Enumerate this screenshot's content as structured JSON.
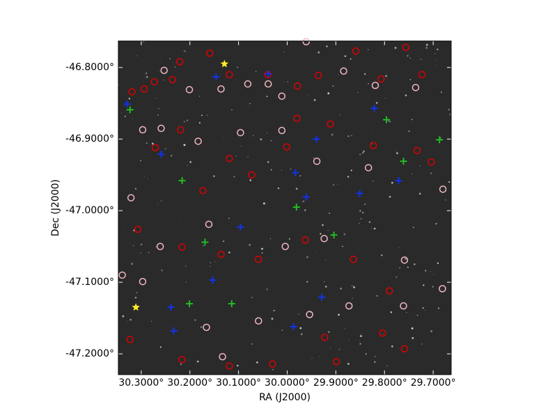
{
  "chart_data": {
    "type": "scatter",
    "xlabel": "RA (J2000)",
    "ylabel": "Dec (J2000)",
    "xlim": [
      30.347,
      29.663
    ],
    "ylim": [
      -47.229,
      -46.763
    ],
    "xticks": [
      {
        "value": 30.3,
        "label": "30.3000°"
      },
      {
        "value": 30.2,
        "label": "30.2000°"
      },
      {
        "value": 30.1,
        "label": "30.1000°"
      },
      {
        "value": 30.0,
        "label": "30.0000°"
      },
      {
        "value": 29.9,
        "label": "29.9000°"
      },
      {
        "value": 29.8,
        "label": "29.8000°"
      },
      {
        "value": 29.7,
        "label": "29.7000°"
      }
    ],
    "yticks": [
      {
        "value": -46.8,
        "label": "-46.8000°"
      },
      {
        "value": -46.9,
        "label": "-46.9000°"
      },
      {
        "value": -47.0,
        "label": "-47.0000°"
      },
      {
        "value": -47.1,
        "label": "-47.1000°"
      },
      {
        "value": -47.2,
        "label": "-47.2000°"
      }
    ],
    "background": "#2a2a2a",
    "series": [
      {
        "color": "#dd0000",
        "marker": "circle",
        "x": [
          30.319,
          30.294,
          30.273,
          30.236,
          30.221,
          30.159,
          30.119,
          30.04,
          29.979,
          29.936,
          29.859,
          29.807,
          29.756,
          29.723,
          30.219,
          30.271,
          30.173,
          30.119,
          30.073,
          30.001,
          29.98,
          29.911,
          29.823,
          29.733,
          29.704,
          30.307,
          30.216,
          30.136,
          30.059,
          29.963,
          29.864,
          29.804,
          29.759,
          30.323,
          30.216,
          30.119,
          30.03,
          29.899,
          29.79,
          29.923
        ],
        "y": [
          -46.834,
          -46.83,
          -46.82,
          -46.817,
          -46.792,
          -46.78,
          -46.81,
          -46.81,
          -46.826,
          -46.811,
          -46.777,
          -46.816,
          -46.772,
          -46.81,
          -46.887,
          -46.912,
          -46.972,
          -46.927,
          -46.95,
          -46.911,
          -46.871,
          -46.879,
          -46.909,
          -46.916,
          -46.932,
          -47.026,
          -47.051,
          -47.061,
          -47.068,
          -47.041,
          -47.068,
          -47.171,
          -47.193,
          -47.18,
          -47.208,
          -47.217,
          -47.214,
          -47.211,
          -47.112,
          -47.177
        ]
      },
      {
        "color": "#f4b8c4",
        "marker": "circle",
        "x": [
          30.253,
          30.201,
          30.136,
          30.081,
          30.039,
          30.011,
          29.961,
          29.884,
          29.819,
          29.736,
          30.297,
          30.259,
          30.183,
          30.096,
          30.011,
          29.939,
          29.833,
          29.68,
          30.321,
          30.261,
          30.161,
          30.004,
          29.924,
          29.759,
          30.339,
          30.297,
          30.166,
          30.059,
          29.954,
          29.873,
          29.761,
          29.681,
          30.133
        ],
        "y": [
          -46.804,
          -46.831,
          -46.83,
          -46.823,
          -46.823,
          -46.84,
          -46.764,
          -46.805,
          -46.825,
          -46.828,
          -46.887,
          -46.885,
          -46.903,
          -46.891,
          -46.888,
          -46.931,
          -46.94,
          -46.97,
          -46.982,
          -47.05,
          -47.019,
          -47.05,
          -47.039,
          -47.069,
          -47.09,
          -47.099,
          -47.163,
          -47.154,
          -47.145,
          -47.133,
          -47.133,
          -47.109,
          -47.204
        ]
      },
      {
        "color": "#22bb22",
        "marker": "plus",
        "x": [
          30.323,
          30.216,
          30.169,
          30.114,
          29.981,
          29.904,
          29.796,
          29.761,
          29.687,
          30.201
        ],
        "y": [
          -46.859,
          -46.958,
          -47.044,
          -47.13,
          -46.995,
          -47.034,
          -46.873,
          -46.931,
          -46.901,
          -47.13
        ]
      },
      {
        "color": "#1133ee",
        "marker": "plus",
        "x": [
          30.329,
          30.259,
          30.146,
          30.096,
          30.039,
          29.983,
          29.94,
          29.961,
          29.851,
          29.821,
          29.771,
          30.153,
          30.239,
          30.233,
          29.987,
          29.929
        ],
        "y": [
          -46.851,
          -46.921,
          -46.813,
          -47.023,
          -46.809,
          -46.947,
          -46.9,
          -46.981,
          -46.976,
          -46.857,
          -46.958,
          -47.097,
          -47.135,
          -47.168,
          -47.162,
          -47.121
        ]
      },
      {
        "color": "#ffee22",
        "marker": "star",
        "x": [
          30.129,
          30.311
        ],
        "y": [
          -46.795,
          -47.135
        ]
      }
    ]
  }
}
